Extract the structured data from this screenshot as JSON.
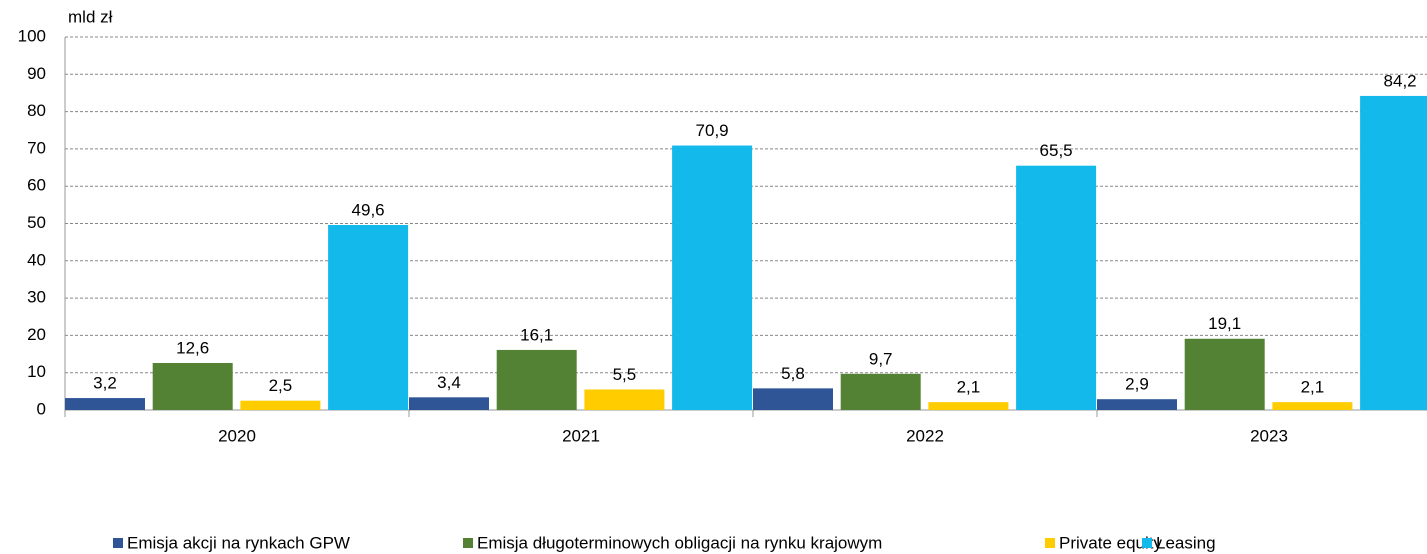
{
  "chart_data": {
    "type": "bar",
    "y_label": "mld zł",
    "categories": [
      "2020",
      "2021",
      "2022",
      "2023"
    ],
    "series": [
      {
        "name": "Emisja akcji na rynkach GPW",
        "color": "#2f5597",
        "values": [
          3.2,
          3.4,
          5.8,
          2.9
        ],
        "value_labels": [
          "3,2",
          "3,4",
          "5,8",
          "2,9"
        ]
      },
      {
        "name": "Emisja długoterminowych obligacji na rynku krajowym",
        "color": "#548235",
        "values": [
          12.6,
          16.1,
          9.7,
          19.1
        ],
        "value_labels": [
          "12,6",
          "16,1",
          "9,7",
          "19,1"
        ]
      },
      {
        "name": "Private equity",
        "color": "#ffcc00",
        "values": [
          2.5,
          5.5,
          2.1,
          2.1
        ],
        "value_labels": [
          "2,5",
          "5,5",
          "2,1",
          "2,1"
        ]
      },
      {
        "name": "Leasing",
        "color": "#12b9ea",
        "values": [
          49.6,
          70.9,
          65.5,
          84.2
        ],
        "value_labels": [
          "49,6",
          "70,9",
          "65,5",
          "84,2"
        ]
      }
    ],
    "ylim": [
      0,
      100
    ],
    "yticks": [
      0,
      10,
      20,
      30,
      40,
      50,
      60,
      70,
      80,
      90,
      100
    ],
    "grid": true,
    "legend": "bottom"
  }
}
